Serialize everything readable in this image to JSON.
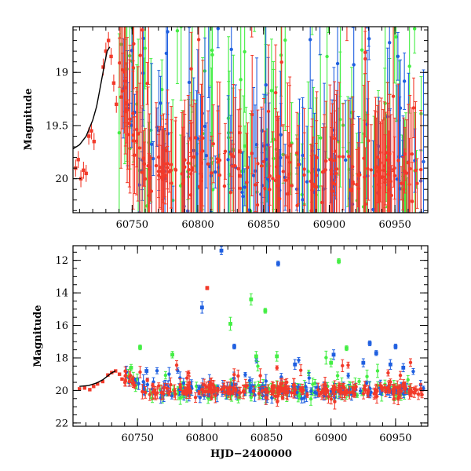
{
  "chart_data": [
    {
      "type": "scatter",
      "panel": "top",
      "xlabel": "",
      "ylabel": "Magnitude",
      "xlim": [
        60705,
        60975
      ],
      "ylim": [
        20.32,
        18.57
      ],
      "y_inverted": true,
      "xticks": [
        60750,
        60800,
        60850,
        60900,
        60950
      ],
      "xtick_labels": [
        "60750",
        "60800",
        "60850",
        "60900",
        "60950"
      ],
      "yticks": [
        19,
        19.5,
        20
      ],
      "ytick_labels": [
        "19",
        "19.5",
        "20"
      ],
      "series": [
        {
          "name": "green band",
          "color": "#44ee44",
          "seed": 11,
          "n": 130,
          "scatter_base": 0.55,
          "outlier_frac": 0.3
        },
        {
          "name": "blue band",
          "color": "#1f5fe0",
          "seed": 23,
          "n": 120,
          "scatter_base": 0.45,
          "outlier_frac": 0.22
        },
        {
          "name": "red band",
          "color": "#f23a2a",
          "seed": 37,
          "n": 230,
          "scatter_base": 0.3,
          "outlier_frac": 0.1
        }
      ],
      "model_curve": {
        "color": "#000000",
        "points": [
          [
            60705,
            19.72
          ],
          [
            60710,
            19.68
          ],
          [
            60715,
            19.6
          ],
          [
            60720,
            19.45
          ],
          [
            60723,
            19.32
          ],
          [
            60726,
            19.12
          ],
          [
            60729,
            18.92
          ],
          [
            60731,
            18.8
          ],
          [
            60733,
            18.76
          ]
        ]
      },
      "rise_points": [
        [
          60707,
          19.9
        ],
        [
          60709,
          19.82
        ],
        [
          60711,
          20.0
        ],
        [
          60713,
          19.92
        ],
        [
          60715,
          19.95
        ],
        [
          60717,
          19.6
        ],
        [
          60719,
          19.55
        ],
        [
          60721,
          19.65
        ],
        [
          60728,
          18.95
        ],
        [
          60730,
          18.8
        ],
        [
          60732,
          18.7
        ],
        [
          60734,
          18.85
        ],
        [
          60736,
          19.1
        ],
        [
          60738,
          19.3
        ]
      ]
    },
    {
      "type": "scatter",
      "panel": "bottom",
      "xlabel": "HJD−2400000",
      "ylabel": "Magnitude",
      "xlim": [
        60700,
        60975
      ],
      "ylim": [
        22.2,
        11.1
      ],
      "y_inverted": true,
      "xticks": [
        60750,
        60800,
        60850,
        60900,
        60950
      ],
      "xtick_labels": [
        "60750",
        "60800",
        "60850",
        "60900",
        "60950"
      ],
      "yticks": [
        12,
        14,
        16,
        18,
        20,
        22
      ],
      "ytick_labels": [
        "12",
        "14",
        "16",
        "18",
        "20",
        "22"
      ],
      "series": [
        {
          "name": "green band",
          "color": "#44ee44",
          "seed": 51,
          "n": 150
        },
        {
          "name": "blue band",
          "color": "#1f5fe0",
          "seed": 63,
          "n": 150
        },
        {
          "name": "red band",
          "color": "#f23a2a",
          "seed": 77,
          "n": 240
        }
      ],
      "outliers": [
        {
          "x": 60815,
          "y": 11.4,
          "err": 0.25,
          "color": "#1f5fe0"
        },
        {
          "x": 60859,
          "y": 12.2,
          "err": 0.15,
          "color": "#1f5fe0"
        },
        {
          "x": 60906,
          "y": 12.05,
          "err": 0.15,
          "color": "#44ee44"
        },
        {
          "x": 60804,
          "y": 13.7,
          "err": 0.1,
          "color": "#f23a2a"
        },
        {
          "x": 60800,
          "y": 14.9,
          "err": 0.35,
          "color": "#1f5fe0"
        },
        {
          "x": 60838,
          "y": 14.4,
          "err": 0.35,
          "color": "#44ee44"
        },
        {
          "x": 60849,
          "y": 15.1,
          "err": 0.15,
          "color": "#44ee44"
        },
        {
          "x": 60822,
          "y": 15.9,
          "err": 0.4,
          "color": "#44ee44"
        },
        {
          "x": 60752,
          "y": 17.35,
          "err": 0.15,
          "color": "#44ee44"
        },
        {
          "x": 60777,
          "y": 17.8,
          "err": 0.2,
          "color": "#44ee44"
        },
        {
          "x": 60825,
          "y": 17.3,
          "err": 0.15,
          "color": "#1f5fe0"
        },
        {
          "x": 60842,
          "y": 17.9,
          "err": 0.3,
          "color": "#44ee44"
        },
        {
          "x": 60858,
          "y": 17.9,
          "err": 0.3,
          "color": "#44ee44"
        },
        {
          "x": 60902,
          "y": 17.8,
          "err": 0.3,
          "color": "#1f5fe0"
        },
        {
          "x": 60912,
          "y": 17.4,
          "err": 0.15,
          "color": "#44ee44"
        },
        {
          "x": 60930,
          "y": 17.1,
          "err": 0.15,
          "color": "#1f5fe0"
        },
        {
          "x": 60950,
          "y": 17.3,
          "err": 0.15,
          "color": "#1f5fe0"
        },
        {
          "x": 60935,
          "y": 17.7,
          "err": 0.15,
          "color": "#1f5fe0"
        },
        {
          "x": 60946,
          "y": 18.4,
          "err": 0.3,
          "color": "#1f5fe0"
        },
        {
          "x": 60925,
          "y": 18.3,
          "err": 0.25,
          "color": "#1f5fe0"
        },
        {
          "x": 60872,
          "y": 18.4,
          "err": 0.3,
          "color": "#1f5fe0"
        },
        {
          "x": 60900,
          "y": 18.3,
          "err": 0.25,
          "color": "#44ee44"
        },
        {
          "x": 60956,
          "y": 18.6,
          "err": 0.25,
          "color": "#1f5fe0"
        },
        {
          "x": 60745,
          "y": 18.6,
          "err": 0.2,
          "color": "#44ee44"
        },
        {
          "x": 60757,
          "y": 18.8,
          "err": 0.2,
          "color": "#1f5fe0"
        }
      ],
      "model_curve": {
        "color": "#000000",
        "points": [
          [
            60705,
            19.75
          ],
          [
            60712,
            19.7
          ],
          [
            60718,
            19.55
          ],
          [
            60723,
            19.35
          ],
          [
            60727,
            19.1
          ],
          [
            60730,
            18.92
          ],
          [
            60733,
            18.8
          ]
        ]
      }
    }
  ]
}
